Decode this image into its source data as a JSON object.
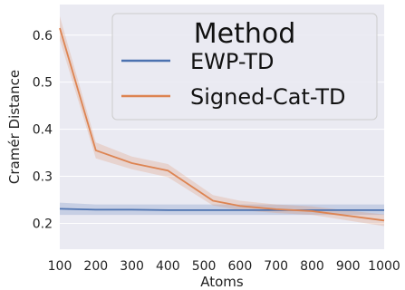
{
  "chart_data": {
    "type": "line",
    "xlabel": "Atoms",
    "ylabel": "Cramér Distance",
    "xlim": [
      100,
      1000
    ],
    "ylim": [
      0.145,
      0.665
    ],
    "xticks": [
      100,
      200,
      300,
      400,
      500,
      600,
      700,
      800,
      900,
      1000
    ],
    "yticks": [
      0.2,
      0.3,
      0.4,
      0.5,
      0.6
    ],
    "grid": true,
    "legend": {
      "title": "Method",
      "position": "top-right"
    },
    "series": [
      {
        "name": "EWP-TD",
        "color": "#4c72b0",
        "x": [
          100,
          200,
          300,
          400,
          500,
          600,
          700,
          800,
          900,
          1000
        ],
        "values": [
          0.231,
          0.229,
          0.229,
          0.228,
          0.228,
          0.228,
          0.228,
          0.228,
          0.228,
          0.228
        ],
        "lower": [
          0.218,
          0.218,
          0.218,
          0.218,
          0.218,
          0.218,
          0.218,
          0.218,
          0.218,
          0.218
        ],
        "upper": [
          0.244,
          0.24,
          0.24,
          0.24,
          0.24,
          0.24,
          0.24,
          0.24,
          0.24,
          0.24
        ]
      },
      {
        "name": "Signed-Cat-TD",
        "color": "#dd8452",
        "x": [
          100,
          200,
          300,
          400,
          525,
          600,
          700,
          800,
          900,
          1000
        ],
        "values": [
          0.615,
          0.355,
          0.328,
          0.312,
          0.248,
          0.237,
          0.23,
          0.226,
          0.216,
          0.206
        ],
        "lower": [
          0.59,
          0.338,
          0.315,
          0.298,
          0.238,
          0.228,
          0.222,
          0.218,
          0.206,
          0.194
        ],
        "upper": [
          0.64,
          0.372,
          0.342,
          0.326,
          0.26,
          0.248,
          0.24,
          0.236,
          0.227,
          0.219
        ]
      }
    ]
  }
}
